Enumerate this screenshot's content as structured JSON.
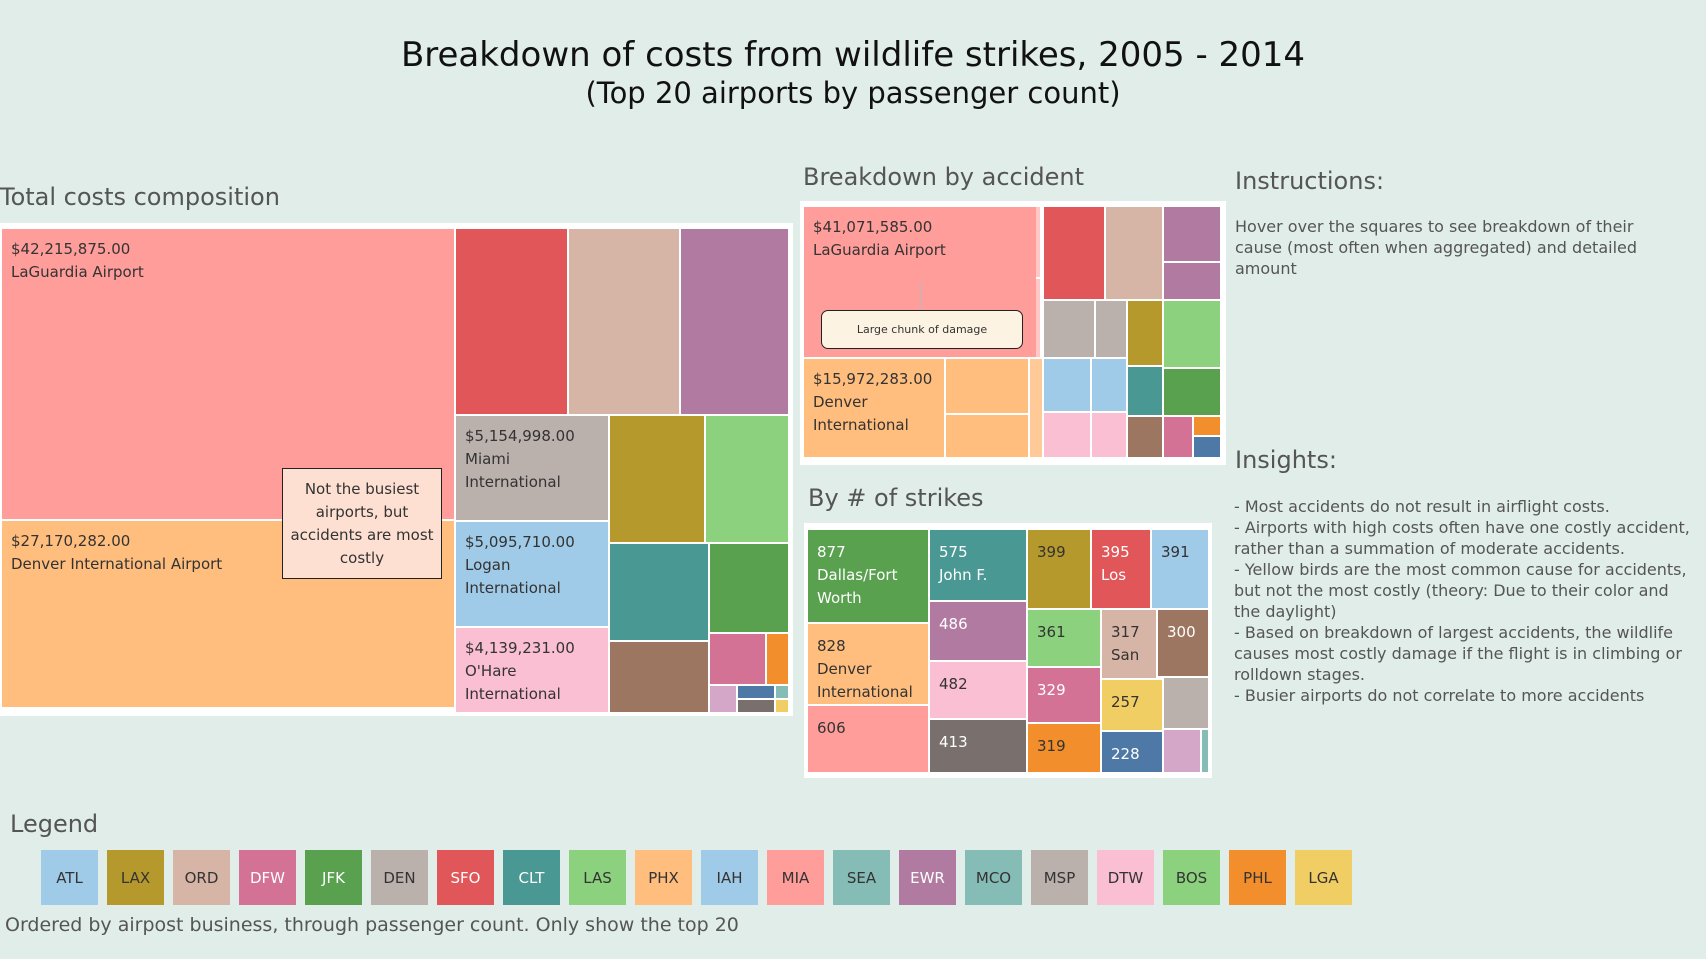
{
  "title": "Breakdown of costs from wildlife strikes, 2005 - 2014",
  "subtitle": "(Top 20 airports by passenger count)",
  "headings": {
    "total_costs": "Total costs composition",
    "by_accident": "Breakdown by accident",
    "by_strikes": "By # of strikes",
    "instructions": "Instructions:",
    "insights": "Insights:",
    "legend": "Legend"
  },
  "colors": {
    "background": "#e0ede9",
    "ATL": "#a0cbe8",
    "LAX": "#b6992d",
    "ORD": "#d7b5a6",
    "DFW": "#d37295",
    "JFK": "#59a14f",
    "DEN": "#bab0ac",
    "SFO": "#e15759",
    "CLT": "#499894",
    "LAS": "#8cd17d",
    "PHX": "#ffbe7d",
    "IAH": "#a0cbe8",
    "MIA": "#ff9d9a",
    "SEA": "#86bcb6",
    "EWR": "#b07aa1",
    "MCO": "#86bcb6",
    "MSP": "#bab0ac",
    "DTW": "#fabfd2",
    "BOS": "#8cd17d",
    "PHL": "#f28e2b",
    "LGA": "#f1ce63"
  },
  "total_costs": {
    "cells": [
      {
        "amount": "$42,215,875.00",
        "name": "LaGuardia Airport"
      },
      {
        "amount": "$27,170,282.00",
        "name": "Denver International Airport"
      },
      {
        "amount": "$5,154,998.00",
        "name": "Miami International"
      },
      {
        "amount": "$5,095,710.00",
        "name": "Logan International"
      },
      {
        "amount": "$4,139,231.00",
        "name": "O'Hare International"
      }
    ],
    "annotation": "Not the busiest airports, but accidents are most costly"
  },
  "by_accident": {
    "cells": [
      {
        "amount": "$41,071,585.00",
        "name": "LaGuardia Airport"
      },
      {
        "amount": "$15,972,283.00",
        "name": "Denver International"
      }
    ],
    "annotation": "Large chunk of damage"
  },
  "by_strikes": {
    "cells": [
      {
        "count": "877",
        "name": "Dallas/Fort Worth"
      },
      {
        "count": "575",
        "name": "John F."
      },
      {
        "count": "399",
        "name": ""
      },
      {
        "count": "395",
        "name": "Los"
      },
      {
        "count": "391",
        "name": ""
      },
      {
        "count": "828",
        "name": "Denver International"
      },
      {
        "count": "486",
        "name": ""
      },
      {
        "count": "361",
        "name": ""
      },
      {
        "count": "317",
        "name": "San"
      },
      {
        "count": "300",
        "name": ""
      },
      {
        "count": "482",
        "name": ""
      },
      {
        "count": "329",
        "name": ""
      },
      {
        "count": "606",
        "name": ""
      },
      {
        "count": "257",
        "name": ""
      },
      {
        "count": "413",
        "name": ""
      },
      {
        "count": "319",
        "name": ""
      },
      {
        "count": "228",
        "name": ""
      }
    ]
  },
  "instructions": {
    "text": "Hover over the squares to see breakdown of their cause (most often when aggregated) and detailed amount"
  },
  "insights": {
    "lines": [
      "- Most accidents do not result in airflight costs.",
      "- Airports with high costs often have one costly accident, rather than a summation of moderate accidents.",
      "- Yellow birds are the most common cause for accidents, but not the most costly (theory: Due to their color and the daylight)",
      "- Based on breakdown of largest accidents, the wildlife causes most costly damage if the flight is in climbing or rolldown stages.",
      "- Busier airports do not correlate to more accidents"
    ]
  },
  "legend": {
    "items": [
      "ATL",
      "LAX",
      "ORD",
      "DFW",
      "JFK",
      "DEN",
      "SFO",
      "CLT",
      "LAS",
      "PHX",
      "IAH",
      "MIA",
      "SEA",
      "EWR",
      "MCO",
      "MSP",
      "DTW",
      "BOS",
      "PHL",
      "LGA"
    ],
    "note": "Ordered by airpost business, through passenger count. Only show the top 20"
  }
}
